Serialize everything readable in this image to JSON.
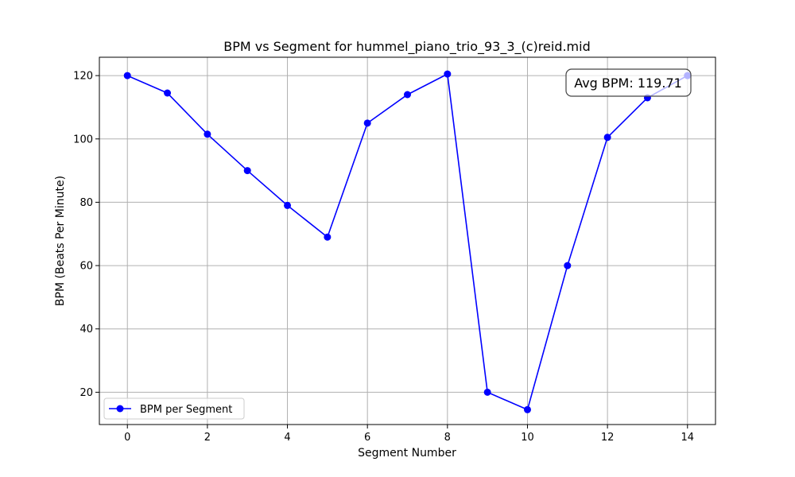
{
  "chart_data": {
    "type": "line",
    "title": "BPM vs Segment for hummel_piano_trio_93_3_(c)reid.mid",
    "xlabel": "Segment Number",
    "ylabel": "BPM (Beats Per Minute)",
    "xlim": [
      -0.7,
      14.7
    ],
    "ylim": [
      9.8,
      125.8
    ],
    "xticks": [
      0,
      2,
      4,
      6,
      8,
      10,
      12,
      14
    ],
    "yticks": [
      20,
      40,
      60,
      80,
      100,
      120
    ],
    "grid": true,
    "legend_position": "lower-left",
    "series": [
      {
        "name": "BPM per Segment",
        "color": "#0000ff",
        "marker": "circle",
        "x": [
          0,
          1,
          2,
          3,
          4,
          5,
          6,
          7,
          8,
          9,
          10,
          11,
          12,
          13,
          14
        ],
        "y": [
          120,
          114.5,
          101.5,
          90,
          79,
          69,
          105,
          114,
          120.5,
          20,
          14.5,
          60,
          100.5,
          113,
          120
        ]
      }
    ],
    "annotation": {
      "text": "Avg BPM: 119.71",
      "position": "top-right"
    }
  }
}
